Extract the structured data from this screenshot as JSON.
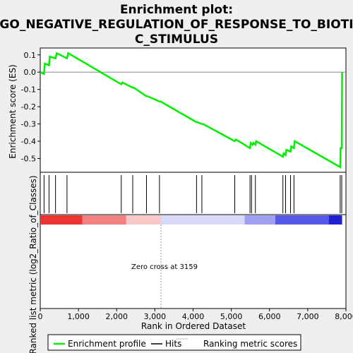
{
  "chart_data": {
    "type": "line",
    "title_lines": [
      "Enrichment plot:",
      "GO_NEGATIVE_REGULATION_OF_RESPONSE_TO_BIOTI",
      "C_STIMULUS"
    ],
    "ylabel_top": "Enrichment score (ES)",
    "ylabel_bottom": "Ranked list metric (log2_Ratio_of_Classes)",
    "xlabel": "Rank in Ordered Dataset",
    "xlim": [
      0,
      8000
    ],
    "ylim_es": [
      -0.58,
      0.14
    ],
    "x_ticks": [
      0,
      1000,
      2000,
      3000,
      4000,
      5000,
      6000,
      7000,
      8000
    ],
    "x_tick_labels": [
      "0",
      "1,000",
      "2,000",
      "3,000",
      "4,000",
      "5,000",
      "6,000",
      "7,000",
      "8,000"
    ],
    "y_ticks": [
      0.1,
      0.0,
      -0.1,
      -0.2,
      -0.3,
      -0.4,
      -0.5
    ],
    "y_tick_labels": [
      "0.1",
      "0.0",
      "-0.1",
      "-0.2",
      "-0.3",
      "-0.4",
      "-0.5"
    ],
    "zero_cross": 3159,
    "annotation": "Zero cross at 3159",
    "series": [
      {
        "name": "Enrichment profile",
        "color": "#00ee00",
        "x": [
          0,
          100,
          120,
          230,
          250,
          400,
          430,
          700,
          730,
          2120,
          2150,
          2420,
          2450,
          2780,
          2810,
          3120,
          3150,
          4090,
          4120,
          4230,
          4260,
          5090,
          5120,
          5490,
          5510,
          5560,
          5580,
          5630,
          5650,
          6350,
          6370,
          6420,
          6440,
          6550,
          6570,
          6640,
          6660,
          7850,
          7860,
          7890,
          7900
        ],
        "y": [
          0.0,
          -0.01,
          0.05,
          0.04,
          0.09,
          0.08,
          0.11,
          0.08,
          0.11,
          -0.07,
          -0.06,
          -0.09,
          -0.09,
          -0.14,
          -0.14,
          -0.17,
          -0.17,
          -0.29,
          -0.29,
          -0.3,
          -0.3,
          -0.4,
          -0.39,
          -0.44,
          -0.41,
          -0.42,
          -0.41,
          -0.42,
          -0.4,
          -0.49,
          -0.47,
          -0.48,
          -0.45,
          -0.46,
          -0.43,
          -0.44,
          -0.4,
          -0.55,
          -0.44,
          -0.44,
          0.0
        ]
      }
    ],
    "hits": [
      100,
      230,
      400,
      700,
      2120,
      2420,
      2780,
      3120,
      4090,
      4230,
      5090,
      5490,
      5530,
      5630,
      6350,
      6420,
      6550,
      6640,
      7850,
      7890
    ],
    "legend": {
      "placement": "bottom",
      "entries": [
        {
          "label": "Enrichment profile",
          "color": "#00ee00"
        },
        {
          "label": "Hits",
          "color": "#000000"
        },
        {
          "label": "Ranking metric scores",
          "color": "#c0c0c0"
        }
      ]
    },
    "metric_bar": {
      "segments": [
        {
          "from": 0,
          "to": 1100,
          "color": "#ee3333"
        },
        {
          "from": 1100,
          "to": 2250,
          "color": "#f58080"
        },
        {
          "from": 2250,
          "to": 3159,
          "color": "#f8c8c8"
        },
        {
          "from": 3159,
          "to": 5350,
          "color": "#d8d8f8"
        },
        {
          "from": 5350,
          "to": 6150,
          "color": "#a0a0f0"
        },
        {
          "from": 6150,
          "to": 7550,
          "color": "#5858e8"
        },
        {
          "from": 7550,
          "to": 7900,
          "color": "#2020d0"
        }
      ]
    }
  }
}
